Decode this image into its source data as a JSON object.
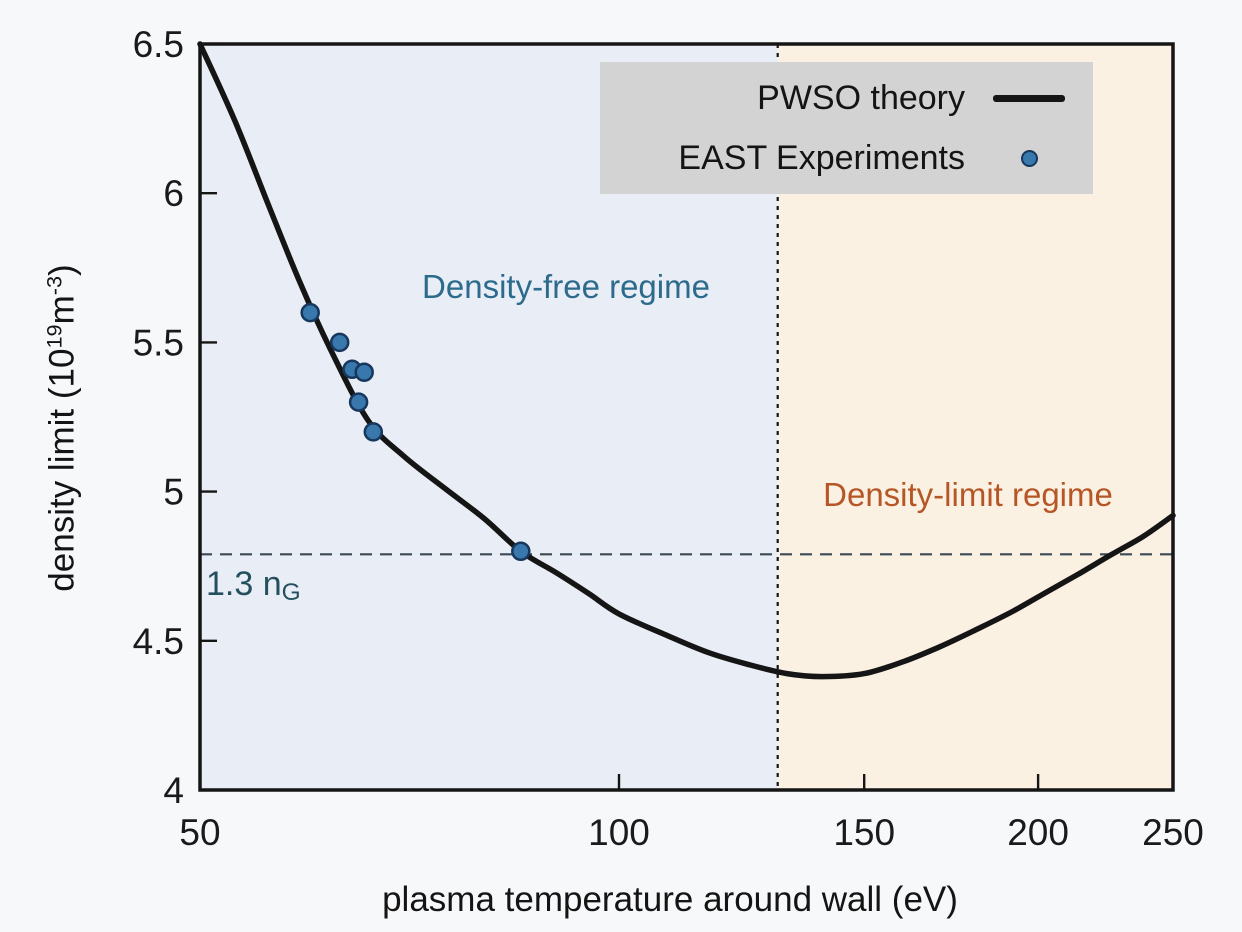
{
  "figure": {
    "background": "#f7f8fa",
    "frame_color": "#151515",
    "tick_label_color": "#1a1a1a"
  },
  "chart_data": {
    "type": "line+scatter",
    "title": "",
    "xlabel": "plasma temperature around wall (eV)",
    "ylabel": "density limit (10^19 m^-3)",
    "ylabel_parts": {
      "prefix": "density limit (10",
      "sup1": "19",
      "mid": "m",
      "sup2": "-3",
      "suffix": ")"
    },
    "x_scale": "log",
    "xlim": [
      50,
      250
    ],
    "ylim": [
      4,
      6.5
    ],
    "x_ticks": [
      "50",
      "100",
      "150",
      "200",
      "250"
    ],
    "y_ticks": [
      "4",
      "4.5",
      "5",
      "5.5",
      "6",
      "6.5"
    ],
    "grid": false,
    "legend": {
      "position": "top-right",
      "background": "#d3d3d3"
    },
    "series": [
      {
        "name": "PWSO theory",
        "type": "line",
        "color": "#151515",
        "x": [
          50,
          53,
          56,
          59,
          62,
          66,
          70,
          75,
          80,
          85,
          90,
          95,
          100,
          108,
          116,
          124,
          132,
          140,
          150,
          160,
          170,
          181,
          192,
          204,
          215,
          226,
          238,
          250
        ],
        "y": [
          6.5,
          6.24,
          5.96,
          5.7,
          5.48,
          5.24,
          5.12,
          5.01,
          4.91,
          4.8,
          4.73,
          4.66,
          4.59,
          4.52,
          4.46,
          4.42,
          4.39,
          4.38,
          4.39,
          4.43,
          4.48,
          4.54,
          4.6,
          4.67,
          4.73,
          4.79,
          4.85,
          4.92
        ]
      },
      {
        "name": "EAST Experiments",
        "type": "scatter",
        "color": "#3878ad",
        "edge_color": "#17375c",
        "points": [
          [
            60,
            5.6
          ],
          [
            63,
            5.5
          ],
          [
            64.3,
            5.41
          ],
          [
            65.6,
            5.4
          ],
          [
            65,
            5.3
          ],
          [
            66.6,
            5.2
          ],
          [
            85,
            4.8
          ]
        ]
      }
    ],
    "regions": [
      {
        "name": "Density-free regime",
        "x_range": [
          50,
          130
        ],
        "color": "#e9edf6"
      },
      {
        "name": "Density-limit regime",
        "x_range": [
          130,
          250
        ],
        "color": "#fbf1e2"
      }
    ],
    "ref_lines": [
      {
        "orientation": "horizontal",
        "value": 4.79,
        "label": "1.3 nG",
        "style": "dashed",
        "color": "#3c4854"
      },
      {
        "orientation": "vertical",
        "value": 130,
        "style": "dashed",
        "color": "#161616"
      }
    ],
    "annotations": [
      {
        "text": "Density-free regime",
        "color": "#2d6b8c",
        "x": 92,
        "y": 5.69
      },
      {
        "text": "Density-limit regime",
        "color": "#b65627",
        "x": 178,
        "y": 4.99
      },
      {
        "text": "1.3 n",
        "sub": "G",
        "color": "#24505e",
        "x": 55,
        "y": 4.69
      }
    ]
  }
}
